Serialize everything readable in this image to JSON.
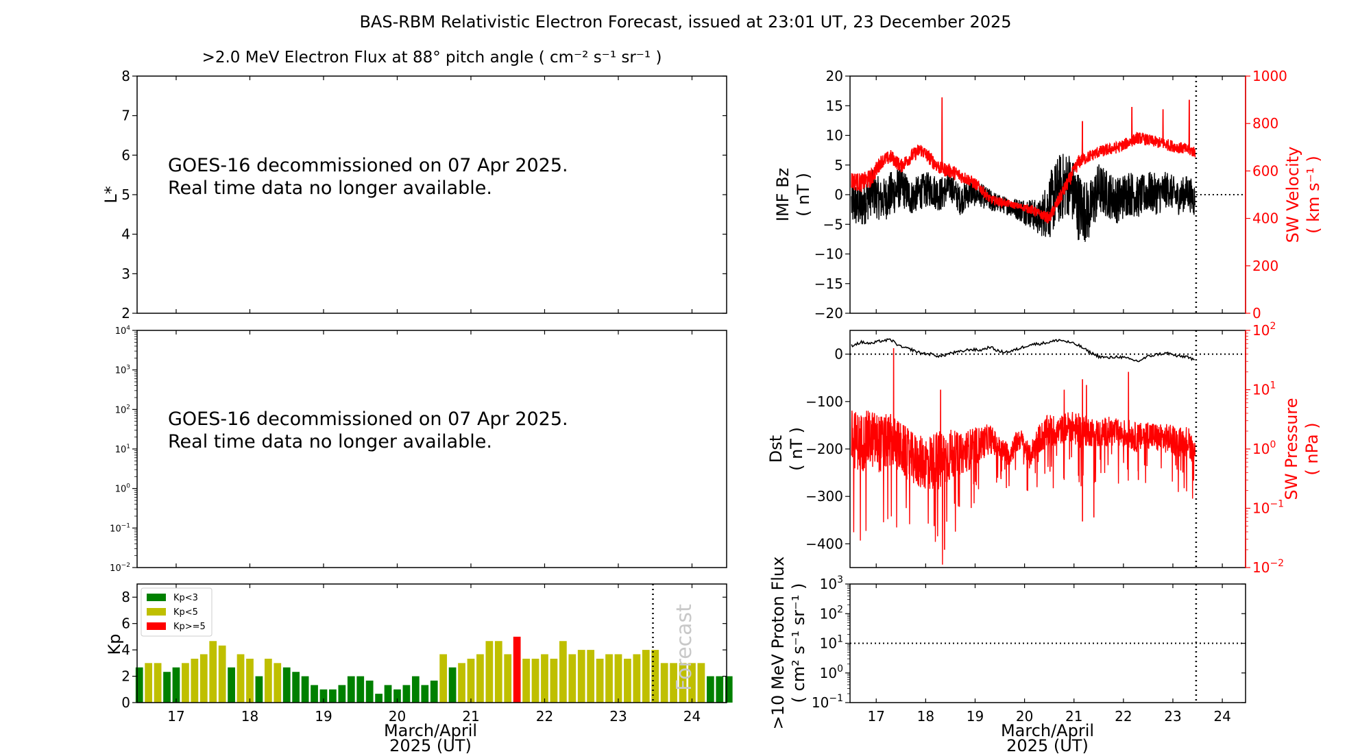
{
  "figure": {
    "title": "BAS-RBM Relativistic Electron Forecast, issued at 23:01 UT, 23 December 2025"
  },
  "chart_data": [
    {
      "id": "lstar_panel",
      "type": "heatmap",
      "title": ">2.0 MeV Electron Flux at 88° pitch angle ( cm⁻² s⁻¹ sr⁻¹ )",
      "ylabel": "L*",
      "ylim": [
        2,
        8
      ],
      "yticks": [
        "2",
        "3",
        "4",
        "5",
        "6",
        "7",
        "8"
      ],
      "message": [
        "GOES-16 decommissioned on 07 Apr 2025.",
        "Real time data no longer available."
      ]
    },
    {
      "id": "flux_panel",
      "type": "line",
      "yscale": "log",
      "ylim": [
        0.01,
        10000
      ],
      "ytick_exponents": [
        "−2",
        "−1",
        "0",
        "1",
        "2",
        "3",
        "4"
      ],
      "message": [
        "GOES-16 decommissioned on 07 Apr 2025.",
        "Real time data no longer available."
      ]
    },
    {
      "id": "kp_panel",
      "type": "bar",
      "ylabel": "Kp",
      "xlabel": [
        "March/April",
        "2025 (UT)"
      ],
      "xlim": [
        16.47,
        24.47
      ],
      "ylim": [
        0,
        9
      ],
      "yticks": [
        "0",
        "2",
        "4",
        "6",
        "8"
      ],
      "xticks": [
        "17",
        "18",
        "19",
        "20",
        "21",
        "22",
        "23",
        "24"
      ],
      "forecast_label": "Forecast",
      "forecast_start": 23.47,
      "legend": [
        {
          "label": "Kp<3",
          "color": "#008000"
        },
        {
          "label": "Kp<5",
          "color": "#bfbf00"
        },
        {
          "label": "Kp>=5",
          "color": "#ff0000"
        }
      ],
      "bar_width_days": 0.1,
      "kp_values": [
        2.67,
        3.0,
        3.0,
        2.33,
        2.67,
        3.0,
        3.33,
        3.67,
        4.67,
        4.33,
        2.67,
        3.67,
        3.33,
        2.0,
        3.33,
        3.0,
        2.67,
        2.33,
        2.0,
        1.33,
        1.0,
        1.0,
        1.33,
        2.0,
        2.0,
        1.67,
        0.67,
        1.33,
        1.0,
        1.33,
        2.0,
        1.33,
        1.67,
        3.67,
        2.67,
        3.0,
        3.33,
        3.67,
        4.67,
        4.67,
        3.67,
        5.0,
        3.33,
        3.33,
        3.67,
        3.33,
        4.67,
        3.67,
        4.0,
        4.0,
        3.33,
        3.67,
        3.67,
        3.33,
        3.67,
        4.0,
        4.0,
        3.0,
        3.0,
        3.0,
        3.0,
        3.0,
        2.0,
        2.0,
        2.0
      ]
    },
    {
      "id": "imf_sw_panel",
      "type": "line",
      "ylabel": [
        "IMF Bz",
        "( nT )"
      ],
      "ylabel_right": [
        "SW Velocity",
        "( km s⁻¹ )"
      ],
      "ylim": [
        -20,
        20
      ],
      "ylim_right": [
        0,
        1000
      ],
      "yticks": [
        "−20",
        "−15",
        "−10",
        "−5",
        "0",
        "5",
        "10",
        "15",
        "20"
      ],
      "yticks_right": [
        "0",
        "200",
        "400",
        "600",
        "800",
        "1000"
      ],
      "now": 23.47,
      "series": [
        {
          "name": "IMF Bz",
          "color": "#000000",
          "x": [
            16.5,
            16.7,
            16.9,
            17.1,
            17.3,
            17.5,
            17.7,
            17.9,
            18.1,
            18.3,
            18.5,
            18.7,
            18.9,
            19.1,
            19.3,
            19.5,
            19.7,
            19.9,
            20.1,
            20.3,
            20.5,
            20.7,
            20.9,
            21.1,
            21.3,
            21.5,
            21.7,
            21.9,
            22.1,
            22.3,
            22.5,
            22.7,
            22.9,
            23.1,
            23.3,
            23.45
          ],
          "values": [
            -1.5,
            -2.0,
            0.5,
            -1.0,
            0.0,
            1.5,
            -0.5,
            0.5,
            1.0,
            0.0,
            1.5,
            -1.0,
            0.5,
            0.0,
            -1.0,
            -1.5,
            -2.0,
            -2.5,
            -3.0,
            -4.0,
            -2.0,
            1.0,
            2.0,
            -2.0,
            -3.0,
            1.0,
            0.0,
            -1.0,
            0.5,
            -0.5,
            0.5,
            0.0,
            1.0,
            -0.5,
            0.5,
            -1.0
          ],
          "spread": [
            4.0,
            4.0,
            4.0,
            3.5,
            4.0,
            3.5,
            3.0,
            3.0,
            3.0,
            3.0,
            2.5,
            2.5,
            2.5,
            2.0,
            2.0,
            1.5,
            1.5,
            2.0,
            2.5,
            3.0,
            5.5,
            6.0,
            5.5,
            6.0,
            5.0,
            4.5,
            4.0,
            4.0,
            4.0,
            3.5,
            3.5,
            3.5,
            3.0,
            3.0,
            3.0,
            3.0
          ]
        },
        {
          "name": "SW Velocity",
          "color": "#ff0000",
          "x": [
            16.5,
            16.7,
            16.9,
            17.1,
            17.3,
            17.5,
            17.7,
            17.9,
            18.1,
            18.3,
            18.5,
            18.7,
            18.9,
            19.1,
            19.3,
            19.5,
            19.7,
            19.9,
            20.1,
            20.3,
            20.5,
            20.7,
            20.9,
            21.1,
            21.3,
            21.5,
            21.7,
            21.9,
            22.1,
            22.3,
            22.5,
            22.7,
            22.9,
            23.1,
            23.3,
            23.45
          ],
          "values": [
            560,
            550,
            570,
            640,
            660,
            620,
            660,
            690,
            650,
            610,
            600,
            580,
            560,
            530,
            480,
            470,
            460,
            450,
            440,
            420,
            400,
            480,
            560,
            640,
            660,
            680,
            690,
            700,
            720,
            740,
            730,
            720,
            710,
            700,
            690,
            680
          ],
          "spread": [
            40,
            40,
            40,
            30,
            30,
            30,
            30,
            30,
            30,
            30,
            30,
            30,
            25,
            25,
            20,
            20,
            15,
            15,
            20,
            20,
            25,
            30,
            30,
            30,
            25,
            25,
            25,
            25,
            25,
            25,
            25,
            25,
            25,
            25,
            25,
            25
          ],
          "spikes": [
            [
              18.33,
              910
            ],
            [
              21.17,
              810
            ],
            [
              22.0,
              690
            ],
            [
              22.17,
              870
            ],
            [
              22.8,
              860
            ],
            [
              23.33,
              900
            ]
          ]
        }
      ]
    },
    {
      "id": "dst_panel",
      "type": "line",
      "ylabel": [
        "Dst",
        "( nT )"
      ],
      "ylabel_right": [
        "SW Pressure",
        "( nPa )"
      ],
      "ylim": [
        -450,
        50
      ],
      "yticks": [
        "−400",
        "−300",
        "−200",
        "−100",
        "0"
      ],
      "ylim_right_log": [
        0.01,
        100
      ],
      "ytick_exponents_right": [
        "−2",
        "−1",
        "0",
        "1",
        "2"
      ],
      "now": 23.47,
      "series": [
        {
          "name": "Dst",
          "color": "#000000",
          "x": [
            16.5,
            16.7,
            16.9,
            17.1,
            17.3,
            17.5,
            17.7,
            17.9,
            18.1,
            18.3,
            18.5,
            18.7,
            18.9,
            19.1,
            19.3,
            19.5,
            19.7,
            19.9,
            20.1,
            20.3,
            20.5,
            20.7,
            20.9,
            21.1,
            21.3,
            21.5,
            21.7,
            21.9,
            22.1,
            22.3,
            22.5,
            22.7,
            22.9,
            23.1,
            23.3,
            23.45
          ],
          "values": [
            18,
            25,
            22,
            28,
            30,
            15,
            10,
            2,
            0,
            -5,
            2,
            5,
            10,
            8,
            15,
            5,
            5,
            12,
            20,
            22,
            25,
            30,
            25,
            18,
            5,
            -5,
            -8,
            -5,
            -10,
            -15,
            -5,
            0,
            2,
            -5,
            -5,
            -15
          ]
        },
        {
          "name": "SW Pressure",
          "color": "#ff0000",
          "x": [
            16.5,
            16.7,
            16.9,
            17.1,
            17.3,
            17.5,
            17.7,
            17.9,
            18.1,
            18.3,
            18.5,
            18.7,
            18.9,
            19.1,
            19.3,
            19.5,
            19.7,
            19.9,
            20.1,
            20.3,
            20.5,
            20.7,
            20.9,
            21.1,
            21.3,
            21.5,
            21.7,
            21.9,
            22.1,
            22.3,
            22.5,
            22.7,
            22.9,
            23.1,
            23.3,
            23.45
          ],
          "values": [
            1.5,
            1.3,
            1.5,
            1.2,
            1.4,
            1.0,
            0.7,
            0.6,
            0.6,
            0.6,
            0.8,
            0.8,
            1.0,
            1.2,
            1.5,
            1.0,
            0.8,
            1.5,
            0.7,
            1.5,
            2.0,
            2.0,
            2.5,
            2.0,
            2.0,
            1.8,
            2.0,
            1.8,
            1.8,
            1.5,
            1.8,
            1.5,
            1.5,
            1.3,
            1.4,
            0.8
          ],
          "spread_log": [
            0.5,
            0.5,
            0.5,
            0.5,
            0.45,
            0.45,
            0.45,
            0.45,
            0.5,
            0.55,
            0.45,
            0.35,
            0.35,
            0.3,
            0.25,
            0.2,
            0.2,
            0.2,
            0.2,
            0.25,
            0.3,
            0.25,
            0.25,
            0.3,
            0.25,
            0.25,
            0.25,
            0.25,
            0.25,
            0.25,
            0.25,
            0.25,
            0.25,
            0.25,
            0.25,
            0.25
          ],
          "spikes_up": [
            [
              17.35,
              50
            ],
            [
              18.3,
              10
            ],
            [
              20.8,
              10
            ],
            [
              21.17,
              15
            ],
            [
              21.25,
              12
            ],
            [
              22.1,
              20
            ]
          ],
          "spikes_down": [
            [
              18.17,
              0.05
            ],
            [
              18.38,
              0.02
            ],
            [
              20.05,
              0.2
            ],
            [
              21.17,
              0.06
            ],
            [
              21.4,
              0.07
            ],
            [
              22.3,
              0.3
            ],
            [
              23.2,
              0.4
            ]
          ]
        }
      ]
    },
    {
      "id": "proton_panel",
      "type": "line",
      "ylabel": [
        ">10 MeV Proton Flux",
        "( cm² s⁻¹ sr⁻¹ )"
      ],
      "xlabel": [
        "March/April",
        "2025 (UT)"
      ],
      "yscale": "log",
      "ylim": [
        0.1,
        1000
      ],
      "ytick_exponents": [
        "−1",
        "0",
        "1",
        "2",
        "3"
      ],
      "xticks": [
        "17",
        "18",
        "19",
        "20",
        "21",
        "22",
        "23",
        "24"
      ],
      "threshold": 10,
      "now": 23.47
    }
  ]
}
